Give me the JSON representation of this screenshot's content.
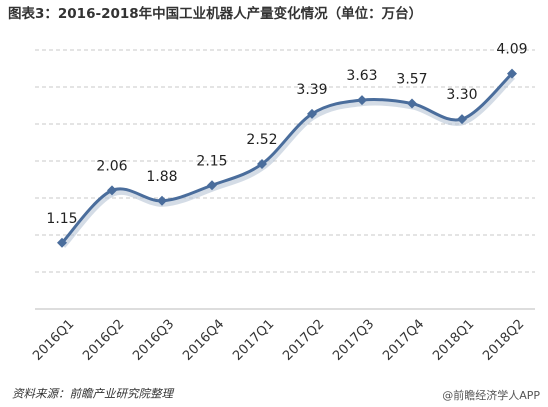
{
  "chart_data": {
    "type": "line",
    "title": "图表3：2016-2018年中国工业机器人产量变化情况（单位：万台）",
    "categories": [
      "2016Q1",
      "2016Q2",
      "2016Q3",
      "2016Q4",
      "2017Q1",
      "2017Q2",
      "2017Q3",
      "2017Q4",
      "2018Q1",
      "2018Q2"
    ],
    "values": [
      1.15,
      2.06,
      1.88,
      2.15,
      2.52,
      3.39,
      3.63,
      3.57,
      3.3,
      4.09
    ],
    "value_labels": [
      "1.15",
      "2.06",
      "1.88",
      "2.15",
      "2.52",
      "3.39",
      "3.63",
      "3.57",
      "3.30",
      "4.09"
    ],
    "color": "#4a6d9c",
    "ylim": [
      0,
      4.5
    ],
    "grid": true,
    "source": "资料来源：前瞻产业研究院整理",
    "watermark": "@前瞻经济学人APP"
  }
}
